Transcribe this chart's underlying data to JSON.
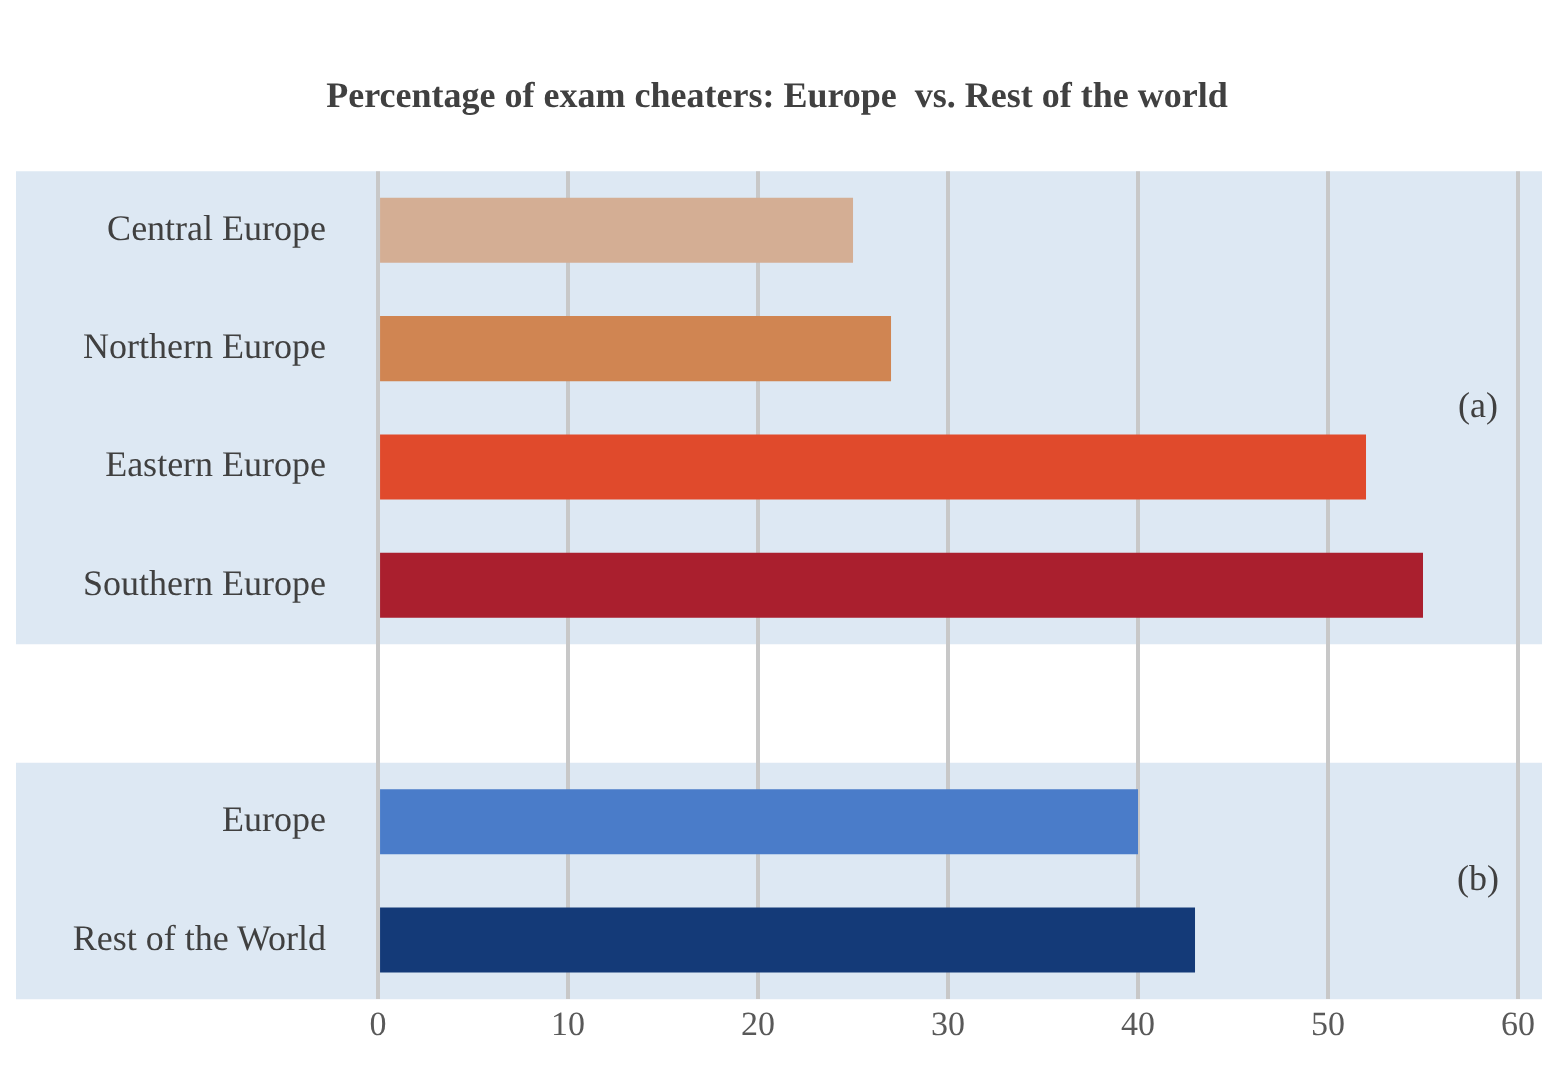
{
  "chart_data": {
    "type": "bar",
    "orientation": "horizontal",
    "title": "Percentage of exam cheaters: Europe  vs. Rest of the world",
    "categories": [
      "Central Europe",
      "Northern Europe",
      "Eastern Europe",
      "Southern Europe",
      null,
      "Europe",
      "Rest of the World"
    ],
    "values": [
      25,
      27,
      52,
      55,
      null,
      40,
      43
    ],
    "colors": [
      "#d4ae94",
      "#d08552",
      "#e04a2c",
      "#aa1f2e",
      "#ffffff",
      "#4a7cc9",
      "#143a78"
    ],
    "xlim": [
      0,
      60
    ],
    "xticks": [
      0,
      10,
      20,
      30,
      40,
      50,
      60
    ],
    "grid": "x",
    "legend": false,
    "bands": [
      {
        "axis": "y",
        "from": "Central Europe",
        "to": "Southern Europe",
        "label": "(a)",
        "color": "#dde8f3"
      },
      {
        "axis": "y",
        "from": "Europe",
        "to": "Rest of the World",
        "label": "(b)",
        "color": "#dde8f3"
      }
    ]
  }
}
